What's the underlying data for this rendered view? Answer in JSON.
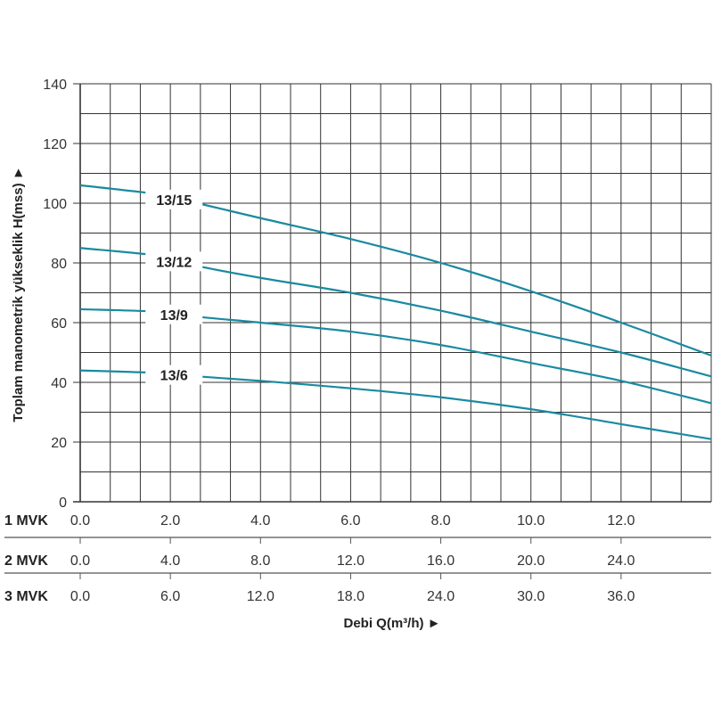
{
  "chart_data": {
    "type": "line",
    "title": "",
    "xlabel": "Debi Q(m³/h) ►",
    "ylabel": "Toplam manometrik yükseklik H(mss) ►",
    "ylim": [
      0,
      140
    ],
    "xlim": [
      0,
      14
    ],
    "y_ticks": [
      "0",
      "20",
      "40",
      "60",
      "80",
      "100",
      "120",
      "140"
    ],
    "grid": true,
    "line_color": "#1a8aa0",
    "x_axes": [
      {
        "name": "1 MVK",
        "ticks": [
          "0.0",
          "2.0",
          "4.0",
          "6.0",
          "8.0",
          "10.0",
          "12.0"
        ]
      },
      {
        "name": "2 MVK",
        "ticks": [
          "0.0",
          "4.0",
          "8.0",
          "12.0",
          "16.0",
          "20.0",
          "24.0"
        ]
      },
      {
        "name": "3 MVK",
        "ticks": [
          "0.0",
          "6.0",
          "12.0",
          "18.0",
          "24.0",
          "30.0",
          "36.0"
        ]
      }
    ],
    "series": [
      {
        "name": "13/15",
        "x": [
          0,
          2,
          2.6,
          4,
          6,
          8,
          10,
          12,
          14
        ],
        "y": [
          106,
          102.5,
          100,
          95,
          88,
          80,
          70.5,
          60,
          49
        ]
      },
      {
        "name": "13/12",
        "x": [
          0,
          2,
          2.6,
          4,
          6,
          8,
          10,
          12,
          14
        ],
        "y": [
          85,
          82,
          79,
          75,
          70,
          64,
          57,
          50,
          42
        ]
      },
      {
        "name": "13/9",
        "x": [
          0,
          2,
          2.6,
          4,
          6,
          8,
          10,
          12,
          14
        ],
        "y": [
          64.5,
          63.5,
          62,
          60,
          57,
          52.5,
          46.5,
          40.5,
          33
        ]
      },
      {
        "name": "13/6",
        "x": [
          0,
          2,
          2.6,
          4,
          6,
          8,
          10,
          12,
          14
        ],
        "y": [
          44,
          43,
          42,
          40.5,
          38,
          35,
          31,
          26,
          21
        ]
      }
    ]
  }
}
